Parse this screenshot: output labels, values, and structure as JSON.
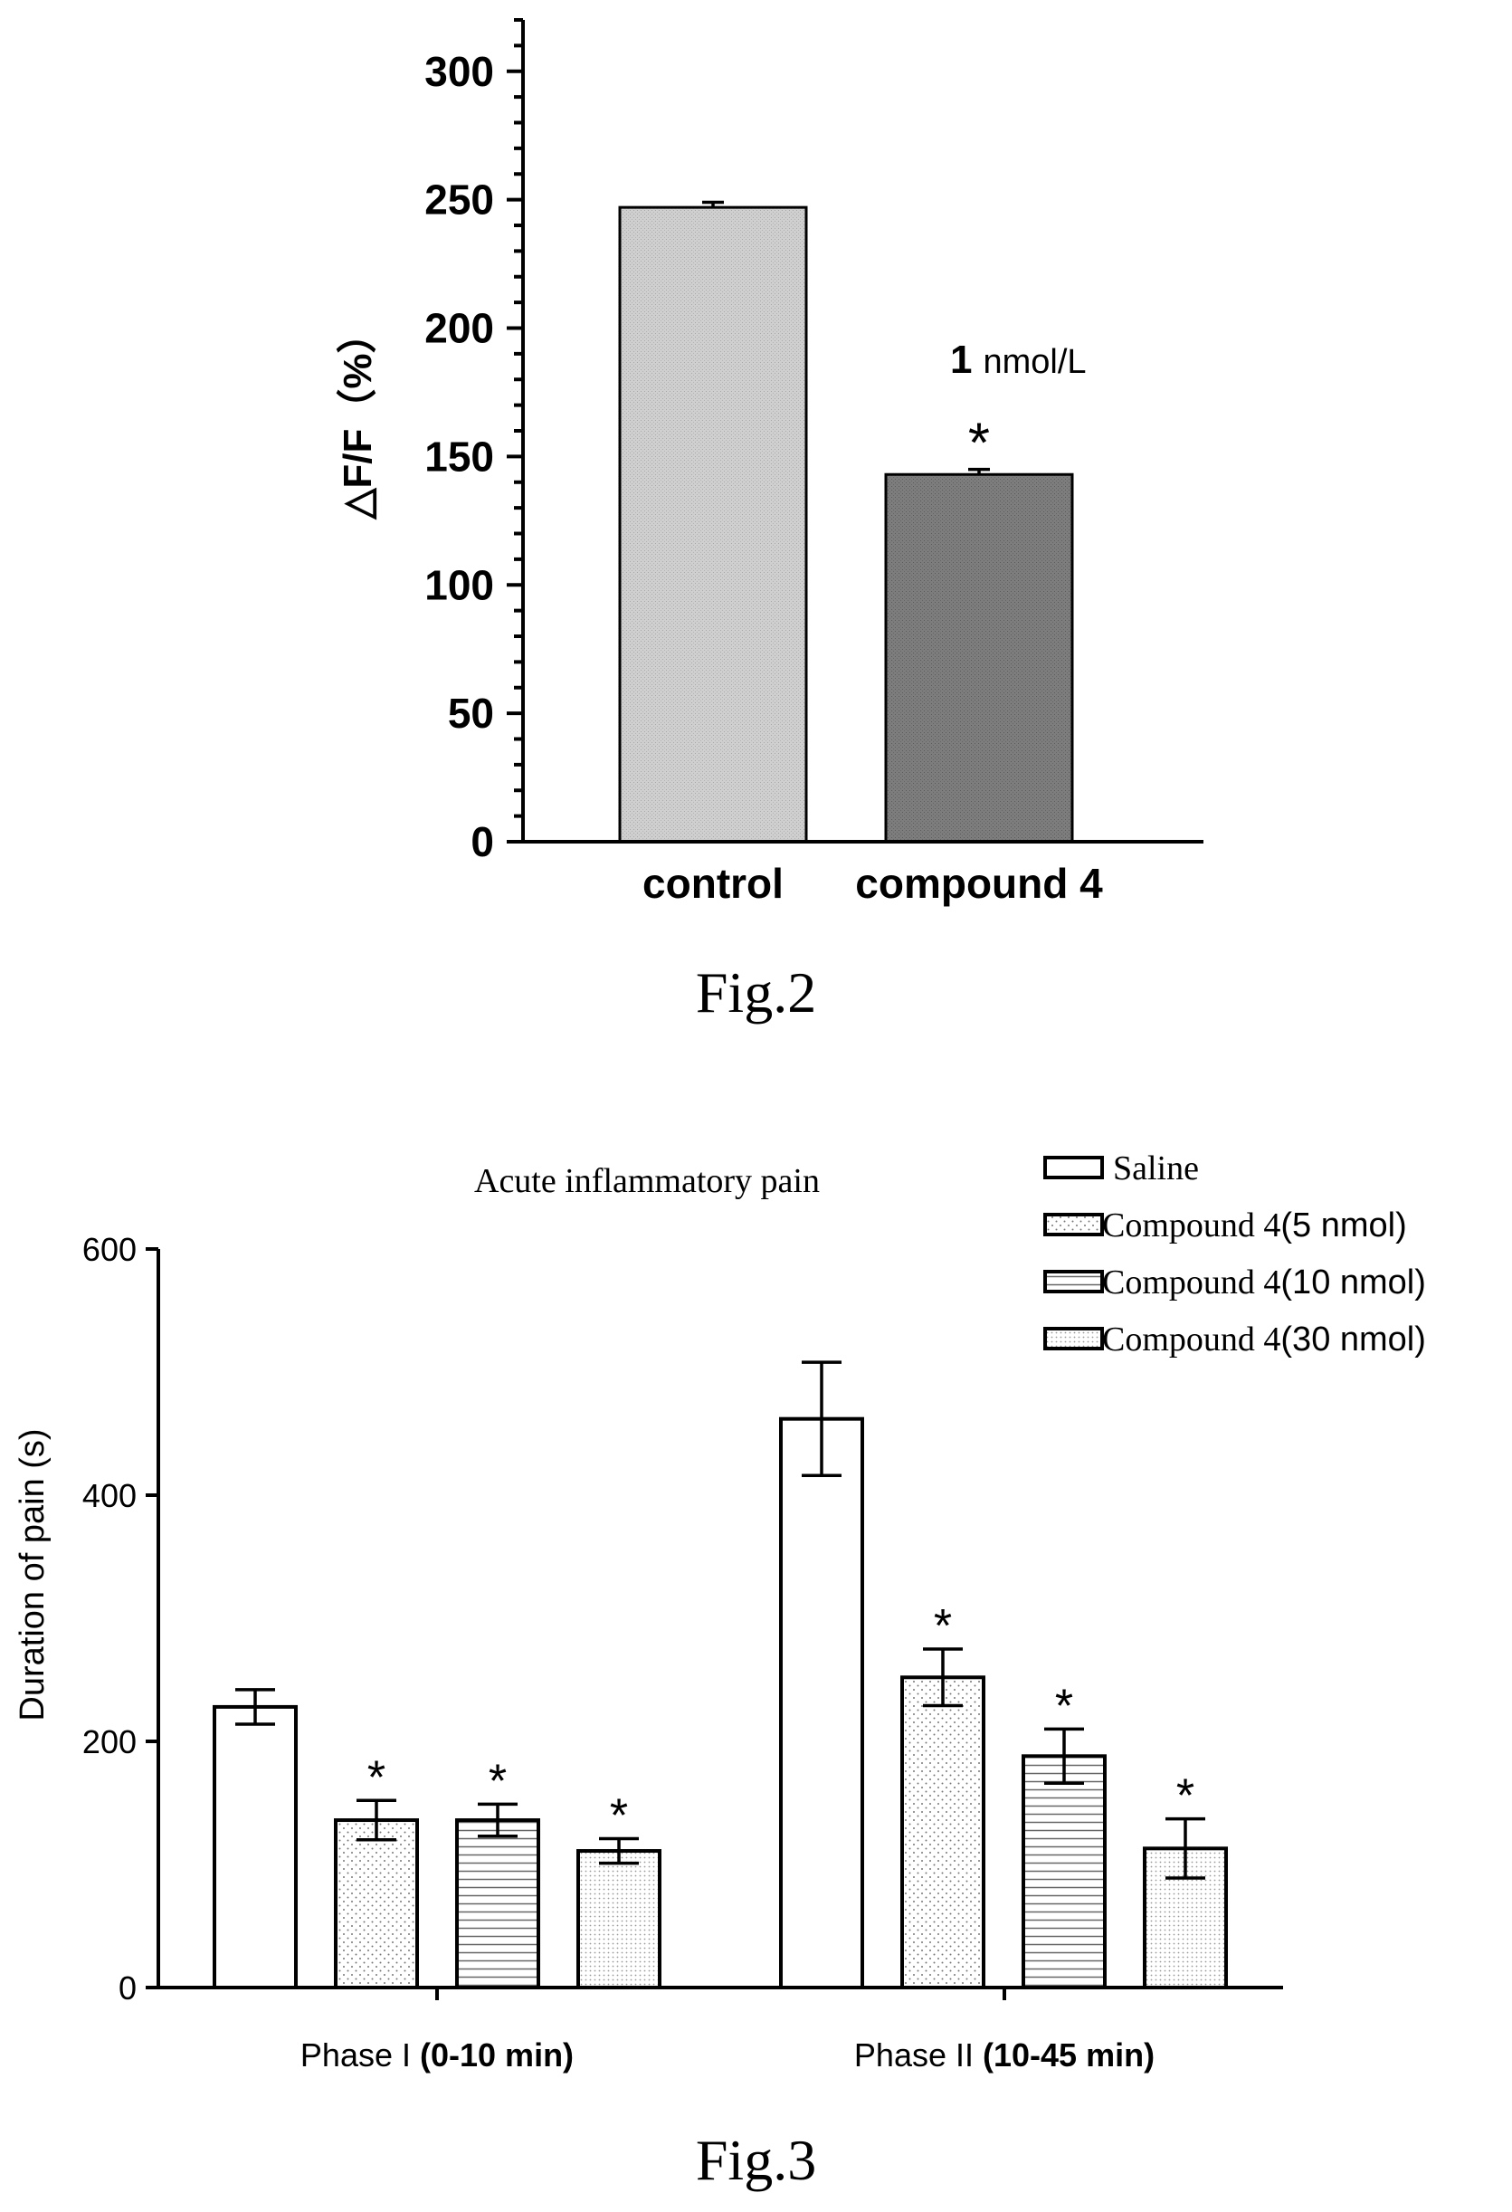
{
  "fig2": {
    "caption": "Fig.2",
    "chart_data": {
      "type": "bar",
      "categories": [
        "control",
        "compound  4"
      ],
      "values": [
        247,
        143
      ],
      "errors": [
        2,
        2
      ],
      "significance": [
        "",
        "*"
      ],
      "bar_colors": [
        "#c8c8c8",
        "#7a7a7a"
      ],
      "ylabel": "△F/F（%）",
      "ylim": [
        0,
        320
      ],
      "yticks": [
        0,
        50,
        100,
        150,
        200,
        250,
        300
      ],
      "annotation": {
        "bold": "1",
        "text": "nmol/L"
      }
    }
  },
  "fig3": {
    "caption": "Fig.3",
    "chart_data": {
      "type": "bar",
      "title": "Acute inflammatory pain",
      "ylabel": "Duration of pain (s)",
      "ylim": [
        0,
        600
      ],
      "yticks": [
        0,
        200,
        400,
        600
      ],
      "groups": [
        {
          "label": "Phase I",
          "label_bold": "(0-10 min)"
        },
        {
          "label": "Phase II",
          "label_bold": "(10-45 min)"
        }
      ],
      "series": [
        {
          "name": "Saline",
          "legend_parts": [
            "Saline",
            ""
          ],
          "pattern": "none",
          "values": [
            228,
            462
          ],
          "errors": [
            14,
            46
          ],
          "significance": [
            "",
            ""
          ]
        },
        {
          "name": "Compound 4(5 nmol)",
          "legend_parts": [
            "Compound 4",
            "(5 nmol)"
          ],
          "pattern": "dots",
          "values": [
            136,
            252
          ],
          "errors": [
            16,
            23
          ],
          "significance": [
            "*",
            "*"
          ]
        },
        {
          "name": "Compound 4(10 nmol)",
          "legend_parts": [
            "Compound 4",
            "(10 nmol)"
          ],
          "pattern": "hlines",
          "values": [
            136,
            188
          ],
          "errors": [
            13,
            22
          ],
          "significance": [
            "*",
            "*"
          ]
        },
        {
          "name": "Compound 4(30 nmol)",
          "legend_parts": [
            "Compound 4",
            "(30 nmol)"
          ],
          "pattern": "finedots",
          "values": [
            111,
            113
          ],
          "errors": [
            10,
            24
          ],
          "significance": [
            "*",
            "*"
          ]
        }
      ]
    }
  }
}
